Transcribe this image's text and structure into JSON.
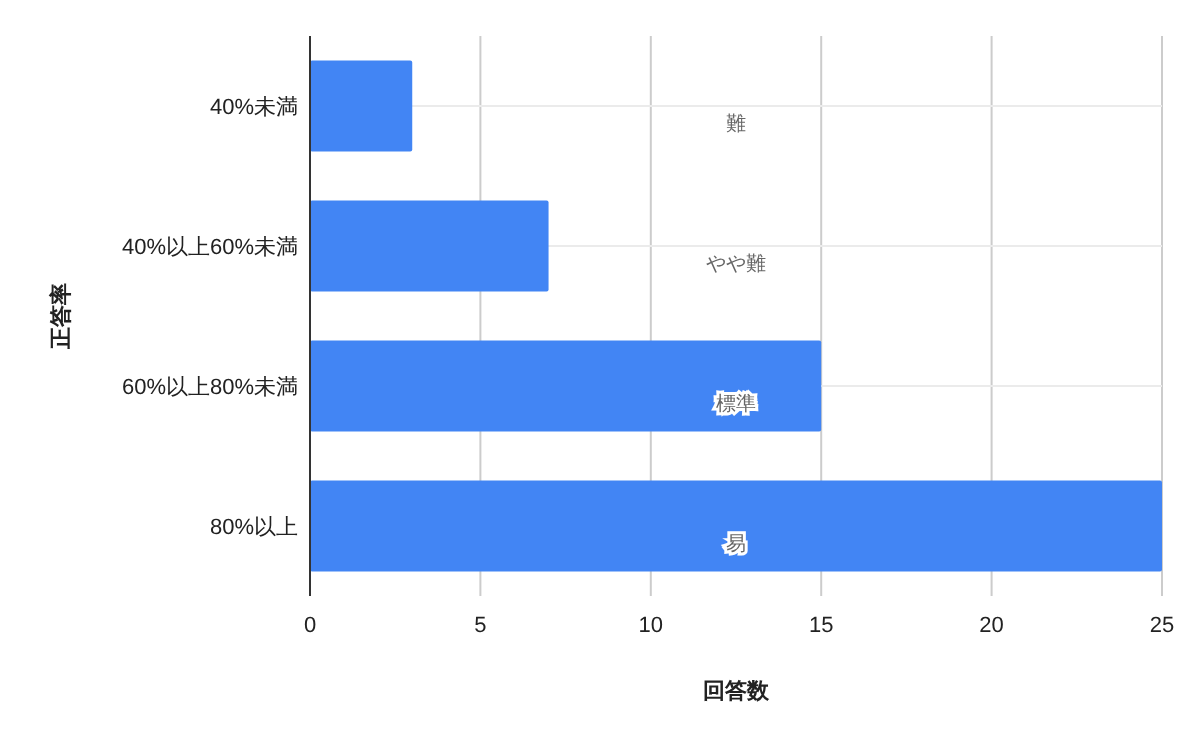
{
  "chart_data": {
    "type": "bar",
    "orientation": "horizontal",
    "xlabel": "回答数",
    "ylabel": "正答率",
    "categories": [
      "40%未満",
      "40%以上60%未満",
      "60%以上80%未満",
      "80%以上"
    ],
    "values": [
      3,
      7,
      15,
      25
    ],
    "color": "#4285f4",
    "xlim": [
      0,
      25
    ],
    "xticks": [
      0,
      5,
      10,
      15,
      20,
      25
    ],
    "grid": true,
    "annotations": [
      "難",
      "やや難",
      "標準",
      "易"
    ]
  }
}
